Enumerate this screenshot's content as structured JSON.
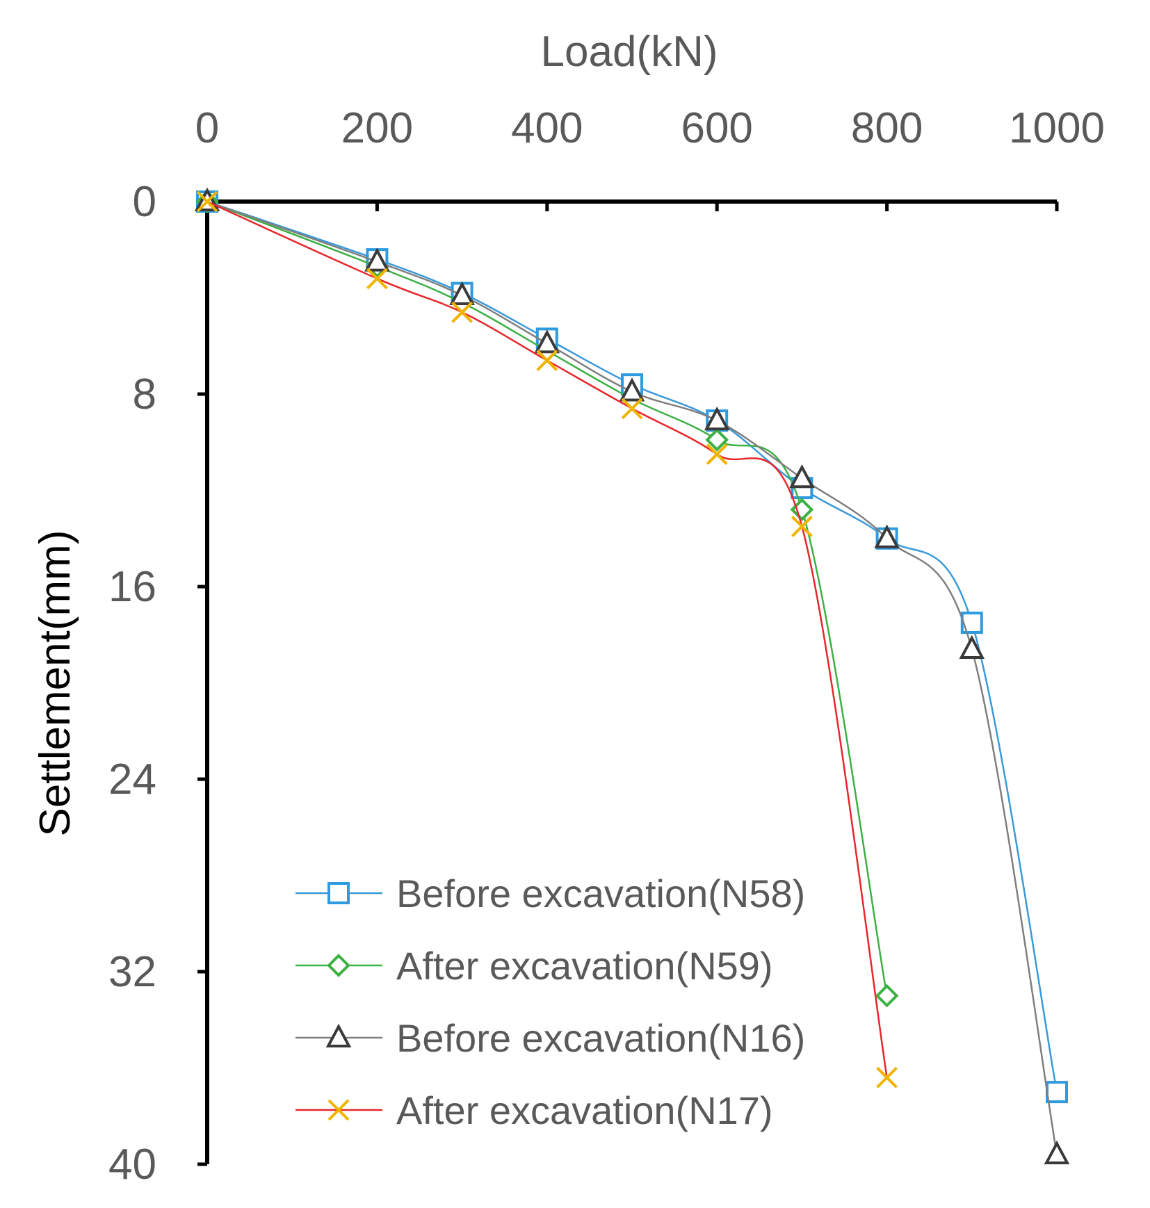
{
  "chart_data": {
    "type": "line",
    "title": "",
    "xlabel": "Load(kN)",
    "ylabel": "Settlement(mm)",
    "xlim": [
      0,
      1000
    ],
    "ylim": [
      0,
      40
    ],
    "y_inverted": true,
    "x_axis_position": "top",
    "xticks": [
      "0",
      "200",
      "400",
      "600",
      "800",
      "1000"
    ],
    "yticks": [
      "0",
      "8",
      "16",
      "24",
      "32",
      "40"
    ],
    "grid": false,
    "legend_position": "bottom-center",
    "series": [
      {
        "name": "Before excavation(N58)",
        "color": "#3a9ad9",
        "marker_color": "#2e9be0",
        "marker": "square",
        "x": [
          0,
          200,
          300,
          400,
          500,
          600,
          700,
          800,
          900,
          1000
        ],
        "y": [
          0,
          2.4,
          3.8,
          5.7,
          7.6,
          9.1,
          11.9,
          14.0,
          17.5,
          37.0
        ]
      },
      {
        "name": "After excavation(N59)",
        "color": "#3cb043",
        "marker_color": "#3cb043",
        "marker": "diamond",
        "x": [
          0,
          200,
          300,
          400,
          500,
          600,
          700,
          800
        ],
        "y": [
          0,
          2.7,
          4.2,
          6.2,
          8.2,
          9.9,
          12.8,
          33.0
        ]
      },
      {
        "name": "Before excavation(N16)",
        "color": "#7f7f7f",
        "marker_color": "#3a3a3a",
        "marker": "triangle",
        "x": [
          0,
          200,
          300,
          400,
          500,
          600,
          700,
          800,
          900,
          1000
        ],
        "y": [
          0,
          2.5,
          3.9,
          5.9,
          7.9,
          9.1,
          11.5,
          14.0,
          18.6,
          39.6
        ]
      },
      {
        "name": "After excavation(N17)",
        "color": "#e8262b",
        "marker_color": "#f0b400",
        "marker": "x",
        "x": [
          0,
          200,
          300,
          400,
          500,
          600,
          700,
          800
        ],
        "y": [
          0,
          3.2,
          4.6,
          6.6,
          8.6,
          10.5,
          13.5,
          36.4
        ]
      }
    ]
  }
}
